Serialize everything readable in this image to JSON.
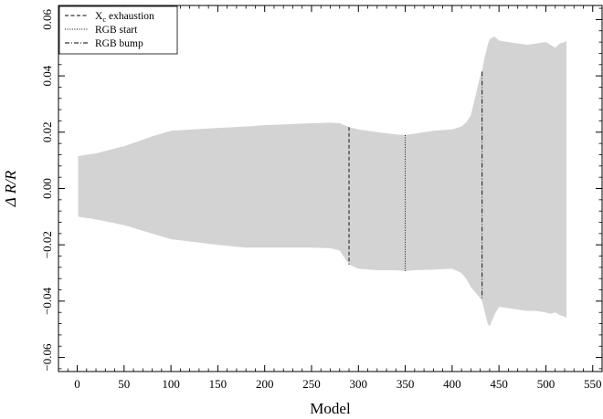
{
  "chart_data": {
    "type": "area",
    "xlabel": "Model",
    "ylabel": "Δ R/R",
    "xlim": [
      -20,
      560
    ],
    "ylim": [
      -0.065,
      0.065
    ],
    "xticks": [
      0,
      50,
      100,
      150,
      200,
      250,
      300,
      350,
      400,
      450,
      500,
      550
    ],
    "xtick_labels": [
      "0",
      "50",
      "100",
      "150",
      "200",
      "250",
      "300",
      "350",
      "400",
      "450",
      "500",
      "550"
    ],
    "yticks": [
      -0.06,
      -0.04,
      -0.02,
      0.0,
      0.02,
      0.04,
      0.06
    ],
    "ytick_labels": [
      "−0.06",
      "−0.04",
      "−0.02",
      "0.00",
      "0.02",
      "0.04",
      "0.06"
    ],
    "fill_color": "#d3d3d3",
    "legend_position": "top-left",
    "band": {
      "x": [
        1,
        20,
        50,
        80,
        100,
        150,
        180,
        200,
        250,
        270,
        280,
        290,
        300,
        320,
        340,
        350,
        360,
        380,
        400,
        410,
        415,
        420,
        425,
        430,
        432,
        435,
        438,
        440,
        445,
        450,
        460,
        470,
        480,
        490,
        500,
        505,
        510,
        515,
        520,
        522
      ],
      "upper": [
        0.0115,
        0.0125,
        0.015,
        0.0185,
        0.0205,
        0.0215,
        0.022,
        0.0225,
        0.0232,
        0.0234,
        0.0232,
        0.0218,
        0.021,
        0.02,
        0.0192,
        0.019,
        0.0195,
        0.0205,
        0.021,
        0.022,
        0.0235,
        0.026,
        0.033,
        0.04,
        0.042,
        0.047,
        0.051,
        0.053,
        0.054,
        0.0525,
        0.052,
        0.0515,
        0.051,
        0.0515,
        0.052,
        0.051,
        0.05,
        0.0515,
        0.052,
        0.0525
      ],
      "lower": [
        -0.01,
        -0.011,
        -0.013,
        -0.016,
        -0.018,
        -0.02,
        -0.021,
        -0.021,
        -0.021,
        -0.0212,
        -0.022,
        -0.027,
        -0.0285,
        -0.029,
        -0.029,
        -0.0293,
        -0.029,
        -0.0288,
        -0.0285,
        -0.03,
        -0.032,
        -0.035,
        -0.037,
        -0.039,
        -0.04,
        -0.044,
        -0.048,
        -0.049,
        -0.045,
        -0.042,
        -0.0425,
        -0.043,
        -0.0435,
        -0.0435,
        -0.044,
        -0.0445,
        -0.044,
        -0.045,
        -0.0455,
        -0.046
      ]
    },
    "markers": [
      {
        "label_main": "X",
        "label_sub": "c",
        "label_rest": " exhaustion",
        "x": 290,
        "y_top": 0.0218,
        "y_bottom": -0.027,
        "dash": "4,2.5"
      },
      {
        "label_main": "RGB start",
        "label_sub": "",
        "label_rest": "",
        "x": 350,
        "y_top": 0.019,
        "y_bottom": -0.0293,
        "dash": "1,1.6"
      },
      {
        "label_main": "RGB bump",
        "label_sub": "",
        "label_rest": "",
        "x": 432,
        "y_top": 0.0415,
        "y_bottom": -0.0395,
        "dash": "5,2,1,2"
      }
    ]
  }
}
